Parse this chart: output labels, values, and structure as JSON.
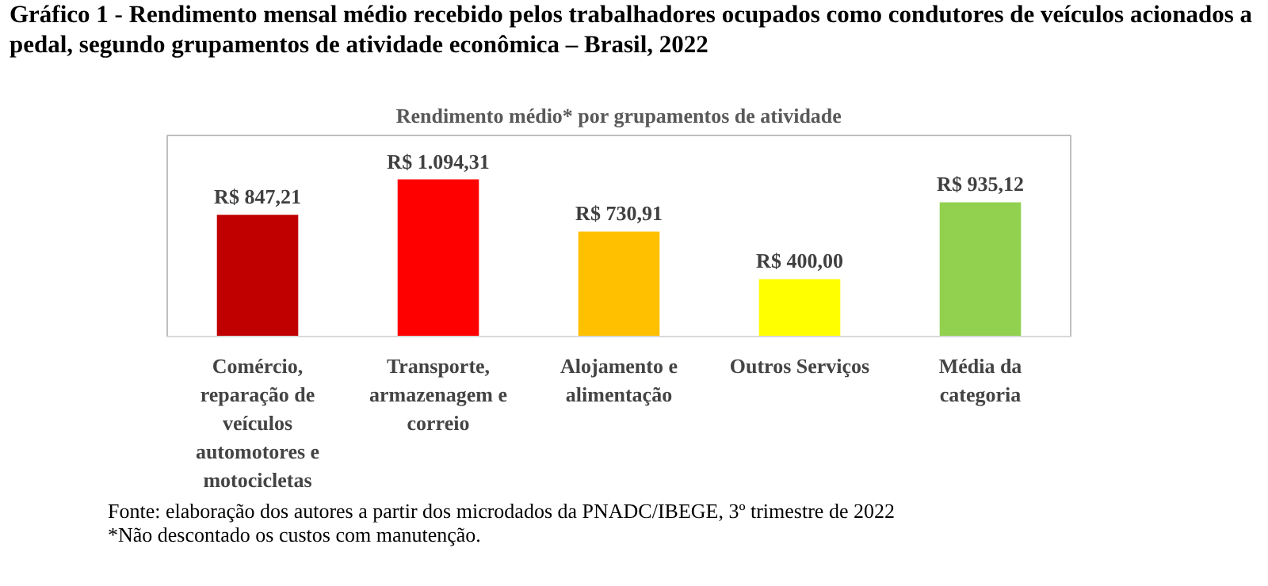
{
  "chart_data": {
    "type": "bar",
    "title": "Gráfico 1 - Rendimento mensal médio recebido pelos trabalhadores ocupados como condutores de veículos acionados a pedal, segundo grupamentos de atividade econômica – Brasil, 2022",
    "subtitle": "Rendimento médio* por grupamentos de atividade",
    "categories": [
      "Comércio, reparação de veículos automotores e motocicletas",
      "Transporte, armazenagem e correio",
      "Alojamento e alimentação",
      "Outros Serviços",
      "Média da categoria"
    ],
    "values": [
      847.21,
      1094.31,
      730.91,
      400.0,
      935.12
    ],
    "colors": [
      "#c00000",
      "#ff0000",
      "#ffc000",
      "#ffff00",
      "#92d050"
    ],
    "value_labels": [
      "R$ 847,21",
      "R$ 1.094,31",
      "R$ 730,91",
      "R$ 400,00",
      "R$ 935,12"
    ],
    "annotations": [
      "Fonte: elaboração dos autores a partir dos microdados da PNADC/IBEGE, 3º trimestre de 2022",
      "*Não descontado os custos com manutenção."
    ]
  }
}
